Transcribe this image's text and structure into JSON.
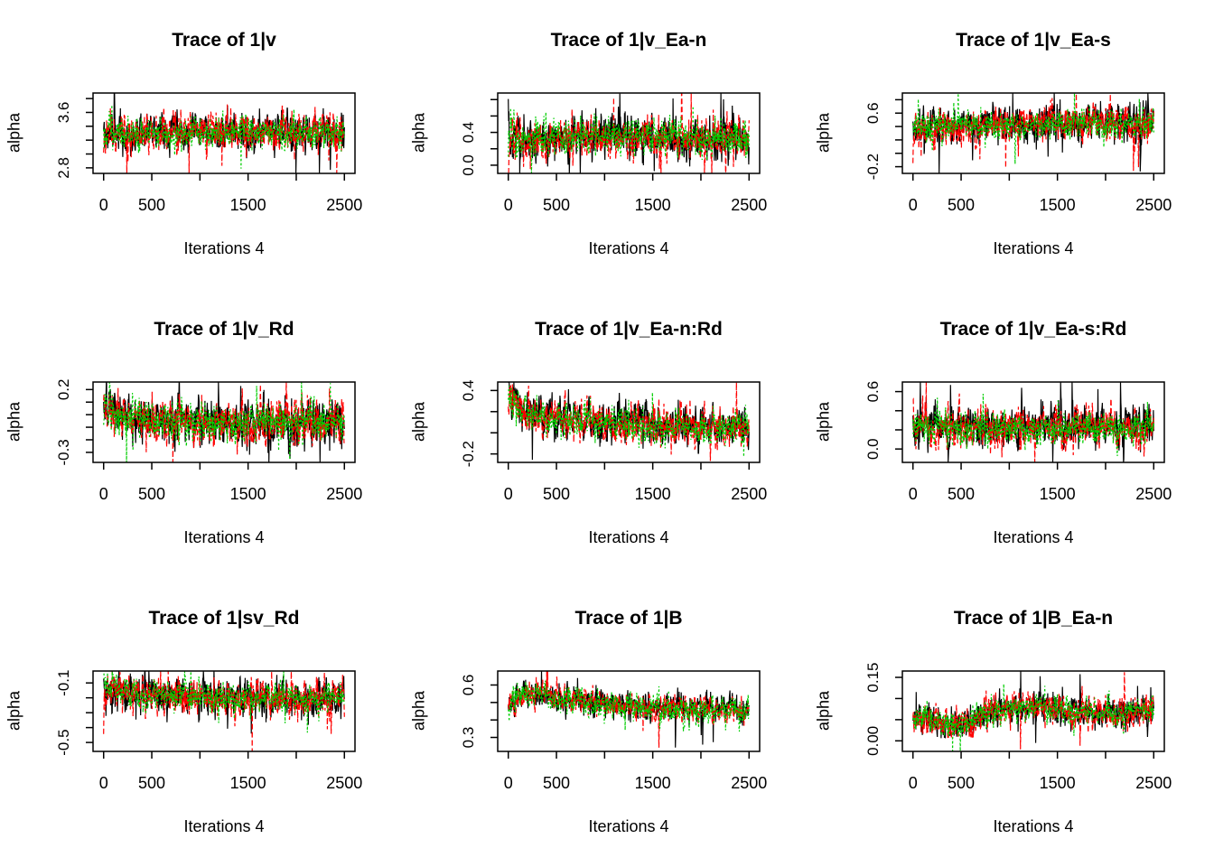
{
  "figure": {
    "background": "#ffffff",
    "axis_color": "#000000",
    "text_color": "#000000",
    "chain_colors": [
      "#000000",
      "#ff0000",
      "#00cd00"
    ],
    "description": "3x3 grid of MCMC trace plots, three chains per panel (black solid, red dashed, green dotted)"
  },
  "chart_data": [
    {
      "type": "line",
      "title": "Trace of 1|v",
      "xlabel": "Iterations 4",
      "ylabel": "alpha",
      "grid": false,
      "legend": null,
      "xlim": [
        -110,
        2610
      ],
      "ylim": [
        2.72,
        3.88
      ],
      "x_ticks": [
        0,
        500,
        1000,
        1500,
        2000,
        2500
      ],
      "x_tick_labels": [
        "0",
        "500",
        "",
        "1500",
        "",
        "2500"
      ],
      "y_ticks": [
        2.8,
        3.0,
        3.2,
        3.4,
        3.6,
        3.8
      ],
      "y_tick_labels": [
        "2.8",
        "",
        "",
        "",
        "3.6",
        ""
      ],
      "trend": [],
      "series": [
        {
          "name": "chain 1",
          "color": "#000000",
          "dash": "",
          "seed": 101,
          "mean": 3.32,
          "amp": 0.4,
          "start_off": 0,
          "start_tau": 1
        },
        {
          "name": "chain 2",
          "color": "#ff0000",
          "dash": "6,3",
          "seed": 102,
          "mean": 3.32,
          "amp": 0.38,
          "start_off": -0.5,
          "start_tau": 14
        },
        {
          "name": "chain 3",
          "color": "#00cd00",
          "dash": "2.2,2.6",
          "seed": 103,
          "mean": 3.31,
          "amp": 0.32,
          "start_off": 0,
          "start_tau": 1
        }
      ]
    },
    {
      "type": "line",
      "title": "Trace of 1|v_Ea-n",
      "xlabel": "Iterations 4",
      "ylabel": "alpha",
      "grid": false,
      "legend": null,
      "xlim": [
        -110,
        2610
      ],
      "ylim": [
        -0.1,
        0.88
      ],
      "x_ticks": [
        0,
        500,
        1000,
        1500,
        2000,
        2500
      ],
      "x_tick_labels": [
        "0",
        "500",
        "",
        "1500",
        "",
        "2500"
      ],
      "y_ticks": [
        0.0,
        0.2,
        0.4,
        0.6,
        0.8
      ],
      "y_tick_labels": [
        "0.0",
        "",
        "0.4",
        "",
        ""
      ],
      "trend": [
        [
          0,
          -0.04
        ],
        [
          500,
          -0.01
        ],
        [
          1000,
          0.04
        ],
        [
          1300,
          0.05
        ],
        [
          1700,
          0.02
        ],
        [
          2000,
          -0.02
        ],
        [
          2500,
          0.0
        ]
      ],
      "series": [
        {
          "name": "chain 1",
          "color": "#000000",
          "dash": "",
          "seed": 201,
          "mean": 0.33,
          "amp": 0.36,
          "start_off": 0.5,
          "start_tau": 8
        },
        {
          "name": "chain 2",
          "color": "#ff0000",
          "dash": "6,3",
          "seed": 202,
          "mean": 0.33,
          "amp": 0.35,
          "start_off": -0.38,
          "start_tau": 10
        },
        {
          "name": "chain 3",
          "color": "#00cd00",
          "dash": "2.2,2.6",
          "seed": 203,
          "mean": 0.33,
          "amp": 0.29,
          "start_off": -0.1,
          "start_tau": 20
        }
      ]
    },
    {
      "type": "line",
      "title": "Trace of 1|v_Ea-s",
      "xlabel": "Iterations 4",
      "ylabel": "alpha",
      "grid": false,
      "legend": null,
      "xlim": [
        -110,
        2610
      ],
      "ylim": [
        -0.3,
        0.9
      ],
      "x_ticks": [
        0,
        500,
        1000,
        1500,
        2000,
        2500
      ],
      "x_tick_labels": [
        "0",
        "500",
        "",
        "1500",
        "",
        "2500"
      ],
      "y_ticks": [
        -0.2,
        0.0,
        0.2,
        0.4,
        0.6,
        0.8
      ],
      "y_tick_labels": [
        "-0.2",
        "",
        "",
        "",
        "0.6",
        ""
      ],
      "trend": [
        [
          0,
          -0.06
        ],
        [
          400,
          -0.01
        ],
        [
          1200,
          0.02
        ],
        [
          2500,
          0.03
        ]
      ],
      "series": [
        {
          "name": "chain 1",
          "color": "#000000",
          "dash": "",
          "seed": 301,
          "mean": 0.42,
          "amp": 0.38,
          "start_off": 0,
          "start_tau": 1
        },
        {
          "name": "chain 2",
          "color": "#ff0000",
          "dash": "6,3",
          "seed": 302,
          "mean": 0.42,
          "amp": 0.37,
          "start_off": -0.6,
          "start_tau": 10
        },
        {
          "name": "chain 3",
          "color": "#00cd00",
          "dash": "2.2,2.6",
          "seed": 303,
          "mean": 0.41,
          "amp": 0.3,
          "start_off": 0,
          "start_tau": 1
        }
      ]
    },
    {
      "type": "line",
      "title": "Trace of 1|v_Rd",
      "xlabel": "Iterations 4",
      "ylabel": "alpha",
      "grid": false,
      "legend": null,
      "xlim": [
        -110,
        2610
      ],
      "ylim": [
        -0.38,
        0.26
      ],
      "x_ticks": [
        0,
        500,
        1000,
        1500,
        2000,
        2500
      ],
      "x_tick_labels": [
        "0",
        "500",
        "",
        "1500",
        "",
        "2500"
      ],
      "y_ticks": [
        -0.3,
        -0.2,
        -0.1,
        0.0,
        0.1,
        0.2
      ],
      "y_tick_labels": [
        "-0.3",
        "",
        "",
        "",
        "",
        "0.2"
      ],
      "trend": [
        [
          0,
          0.1
        ],
        [
          200,
          0.05
        ],
        [
          500,
          0.0
        ],
        [
          2500,
          0.0
        ]
      ],
      "series": [
        {
          "name": "chain 1",
          "color": "#000000",
          "dash": "",
          "seed": 401,
          "mean": -0.06,
          "amp": 0.26,
          "start_off": 0,
          "start_tau": 1
        },
        {
          "name": "chain 2",
          "color": "#ff0000",
          "dash": "6,3",
          "seed": 402,
          "mean": -0.06,
          "amp": 0.25,
          "start_off": 0,
          "start_tau": 1
        },
        {
          "name": "chain 3",
          "color": "#00cd00",
          "dash": "2.2,2.6",
          "seed": 403,
          "mean": -0.06,
          "amp": 0.21,
          "start_off": 0,
          "start_tau": 1
        }
      ]
    },
    {
      "type": "line",
      "title": "Trace of 1|v_Ea-n:Rd",
      "xlabel": "Iterations 4",
      "ylabel": "alpha",
      "grid": false,
      "legend": null,
      "xlim": [
        -110,
        2610
      ],
      "ylim": [
        -0.28,
        0.48
      ],
      "x_ticks": [
        0,
        500,
        1000,
        1500,
        2000,
        2500
      ],
      "x_tick_labels": [
        "0",
        "500",
        "",
        "1500",
        "",
        "2500"
      ],
      "y_ticks": [
        -0.2,
        0.0,
        0.2,
        0.4
      ],
      "y_tick_labels": [
        "-0.2",
        "",
        "",
        "0.4"
      ],
      "trend": [
        [
          0,
          0.24
        ],
        [
          150,
          0.14
        ],
        [
          400,
          0.08
        ],
        [
          800,
          0.05
        ],
        [
          1400,
          0.02
        ],
        [
          2000,
          -0.01
        ],
        [
          2500,
          -0.02
        ]
      ],
      "series": [
        {
          "name": "chain 1",
          "color": "#000000",
          "dash": "",
          "seed": 501,
          "mean": 0.06,
          "amp": 0.27,
          "start_off": 0.18,
          "start_tau": 15
        },
        {
          "name": "chain 2",
          "color": "#ff0000",
          "dash": "6,3",
          "seed": 502,
          "mean": 0.06,
          "amp": 0.26,
          "start_off": -0.15,
          "start_tau": 10
        },
        {
          "name": "chain 3",
          "color": "#00cd00",
          "dash": "2.2,2.6",
          "seed": 503,
          "mean": 0.06,
          "amp": 0.21,
          "start_off": 0,
          "start_tau": 1
        }
      ]
    },
    {
      "type": "line",
      "title": "Trace of 1|v_Ea-s:Rd",
      "xlabel": "Iterations 4",
      "ylabel": "alpha",
      "grid": false,
      "legend": null,
      "xlim": [
        -110,
        2610
      ],
      "ylim": [
        -0.14,
        0.7
      ],
      "x_ticks": [
        0,
        500,
        1000,
        1500,
        2000,
        2500
      ],
      "x_tick_labels": [
        "0",
        "500",
        "",
        "1500",
        "",
        "2500"
      ],
      "y_ticks": [
        0.0,
        0.2,
        0.4,
        0.6
      ],
      "y_tick_labels": [
        "0.0",
        "",
        "",
        "0.6"
      ],
      "trend": [],
      "series": [
        {
          "name": "chain 1",
          "color": "#000000",
          "dash": "",
          "seed": 601,
          "mean": 0.23,
          "amp": 0.3,
          "start_off": 0,
          "start_tau": 1
        },
        {
          "name": "chain 2",
          "color": "#ff0000",
          "dash": "6,3",
          "seed": 602,
          "mean": 0.23,
          "amp": 0.29,
          "start_off": 0.38,
          "start_tau": 7
        },
        {
          "name": "chain 3",
          "color": "#00cd00",
          "dash": "2.2,2.6",
          "seed": 603,
          "mean": 0.22,
          "amp": 0.24,
          "start_off": 0,
          "start_tau": 1
        }
      ]
    },
    {
      "type": "line",
      "title": "Trace of 1|sv_Rd",
      "xlabel": "Iterations 4",
      "ylabel": "alpha",
      "grid": false,
      "legend": null,
      "xlim": [
        -110,
        2610
      ],
      "ylim": [
        -0.56,
        -0.02
      ],
      "x_ticks": [
        0,
        500,
        1000,
        1500,
        2000,
        2500
      ],
      "x_tick_labels": [
        "0",
        "500",
        "",
        "1500",
        "",
        "2500"
      ],
      "y_ticks": [
        -0.5,
        -0.4,
        -0.3,
        -0.2,
        -0.1
      ],
      "y_tick_labels": [
        "-0.5",
        "",
        "",
        "",
        "-0.1"
      ],
      "trend": [
        [
          0,
          0.05
        ],
        [
          120,
          0.04
        ],
        [
          400,
          0.0
        ],
        [
          900,
          -0.015
        ],
        [
          2500,
          -0.02
        ]
      ],
      "series": [
        {
          "name": "chain 1",
          "color": "#000000",
          "dash": "",
          "seed": 701,
          "mean": -0.18,
          "amp": 0.17,
          "start_off": 0,
          "start_tau": 1
        },
        {
          "name": "chain 2",
          "color": "#ff0000",
          "dash": "6,3",
          "seed": 702,
          "mean": -0.18,
          "amp": 0.17,
          "start_off": -0.3,
          "start_tau": 6
        },
        {
          "name": "chain 3",
          "color": "#00cd00",
          "dash": "2.2,2.6",
          "seed": 703,
          "mean": -0.18,
          "amp": 0.14,
          "start_off": 0.03,
          "start_tau": 40
        }
      ]
    },
    {
      "type": "line",
      "title": "Trace of 1|B",
      "xlabel": "Iterations 4",
      "ylabel": "alpha",
      "grid": false,
      "legend": null,
      "xlim": [
        -110,
        2610
      ],
      "ylim": [
        0.22,
        0.68
      ],
      "x_ticks": [
        0,
        500,
        1000,
        1500,
        2000,
        2500
      ],
      "x_tick_labels": [
        "0",
        "500",
        "",
        "1500",
        "",
        "2500"
      ],
      "y_ticks": [
        0.3,
        0.4,
        0.5,
        0.6
      ],
      "y_tick_labels": [
        "0.3",
        "",
        "",
        "0.6"
      ],
      "trend": [
        [
          0,
          -0.02
        ],
        [
          130,
          0.045
        ],
        [
          400,
          0.035
        ],
        [
          800,
          0.01
        ],
        [
          1300,
          -0.02
        ],
        [
          1800,
          -0.04
        ],
        [
          2500,
          -0.04
        ]
      ],
      "series": [
        {
          "name": "chain 1",
          "color": "#000000",
          "dash": "",
          "seed": 801,
          "mean": 0.5,
          "amp": 0.12,
          "start_off": 0,
          "start_tau": 1
        },
        {
          "name": "chain 2",
          "color": "#ff0000",
          "dash": "6,3",
          "seed": 802,
          "mean": 0.5,
          "amp": 0.11,
          "start_off": 0,
          "start_tau": 1
        },
        {
          "name": "chain 3",
          "color": "#00cd00",
          "dash": "2.2,2.6",
          "seed": 803,
          "mean": 0.495,
          "amp": 0.12,
          "start_off": 0,
          "start_tau": 1
        }
      ]
    },
    {
      "type": "line",
      "title": "Trace of 1|B_Ea-n",
      "xlabel": "Iterations 4",
      "ylabel": "alpha",
      "grid": false,
      "legend": null,
      "xlim": [
        -110,
        2610
      ],
      "ylim": [
        -0.025,
        0.165
      ],
      "x_ticks": [
        0,
        500,
        1000,
        1500,
        2000,
        2500
      ],
      "x_tick_labels": [
        "0",
        "500",
        "",
        "1500",
        "",
        "2500"
      ],
      "y_ticks": [
        0.0,
        0.05,
        0.1,
        0.15
      ],
      "y_tick_labels": [
        "0.00",
        "",
        "",
        "0.15"
      ],
      "trend": [
        [
          0,
          0.045
        ],
        [
          150,
          0.055
        ],
        [
          350,
          0.03
        ],
        [
          600,
          0.045
        ],
        [
          900,
          0.075
        ],
        [
          1250,
          0.08
        ],
        [
          1600,
          0.07
        ],
        [
          2100,
          0.065
        ],
        [
          2500,
          0.07
        ]
      ],
      "series": [
        {
          "name": "chain 1",
          "color": "#000000",
          "dash": "",
          "seed": 901,
          "mean": 0.0,
          "amp": 0.05,
          "start_off": 0,
          "start_tau": 1
        },
        {
          "name": "chain 2",
          "color": "#ff0000",
          "dash": "6,3",
          "seed": 902,
          "mean": 0.0,
          "amp": 0.055,
          "start_off": 0,
          "start_tau": 1
        },
        {
          "name": "chain 3",
          "color": "#00cd00",
          "dash": "2.2,2.6",
          "seed": 903,
          "mean": 0.0,
          "amp": 0.042,
          "start_off": 0,
          "start_tau": 1
        }
      ]
    }
  ]
}
